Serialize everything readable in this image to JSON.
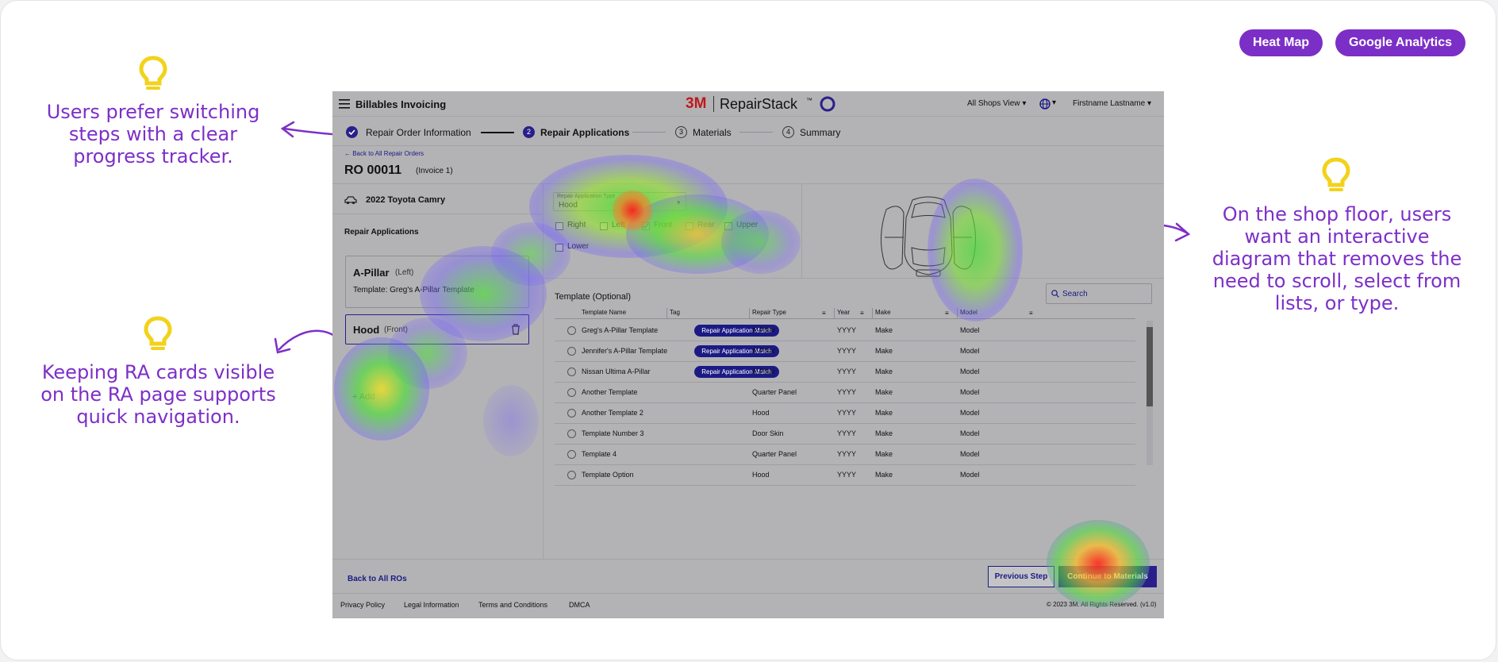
{
  "header_buttons": {
    "heatmap": "Heat Map",
    "analytics": "Google Analytics"
  },
  "callouts": {
    "progress": "Users prefer switching steps with a clear progress tracker.",
    "ra_cards": "Keeping RA cards visible on the RA page supports quick navigation.",
    "diagram": "On the shop floor, users want an interactive diagram that removes the need to scroll, select from lists, or type."
  },
  "app": {
    "title": "Billables Invoicing",
    "brand_3m": "3M",
    "brand_name": "RepairStack",
    "brand_tm": "™",
    "shops_view": "All Shops View",
    "user": "Firstname Lastname",
    "steps": [
      {
        "num": "",
        "label": "Repair Order Information"
      },
      {
        "num": "2",
        "label": "Repair Applications"
      },
      {
        "num": "3",
        "label": "Materials"
      },
      {
        "num": "4",
        "label": "Summary"
      }
    ],
    "back_link": "← Back to All Repair Orders",
    "ro_number": "RO 00011",
    "invoice": "(Invoice 1)",
    "vehicle": "2022 Toyota Camry",
    "ra_heading": "Repair Applications",
    "ra_cards": [
      {
        "name": "A-Pillar",
        "side": "(Left)",
        "template": "Template: Greg's A-Pillar Template"
      },
      {
        "name": "Hood",
        "side": "(Front)"
      }
    ],
    "add_label": "Add",
    "ra_type_label": "Repair Application Type",
    "ra_type_value": "Hood",
    "checkboxes": [
      "Right",
      "Left",
      "Front",
      "Rear",
      "Upper",
      "Lower"
    ],
    "template_heading": "Template (Optional)",
    "search_placeholder": "Search",
    "columns": [
      "Template Name",
      "Tag",
      "Repair Type",
      "Year",
      "Make",
      "Model"
    ],
    "rows": [
      {
        "name": "Greg's A-Pillar Template",
        "tag": "Repair Application Match",
        "type": "A-Pillar",
        "year": "YYYY",
        "make": "Make",
        "model": "Model"
      },
      {
        "name": "Jennifer's A-Pillar Template",
        "tag": "Repair Application Match",
        "type": "A-Pillar",
        "year": "YYYY",
        "make": "Make",
        "model": "Model"
      },
      {
        "name": "Nissan Ultima A-Pillar",
        "tag": "Repair Application Match",
        "type": "A-Pillar",
        "year": "YYYY",
        "make": "Make",
        "model": "Model"
      },
      {
        "name": "Another Template",
        "tag": "",
        "type": "Quarter Panel",
        "year": "YYYY",
        "make": "Make",
        "model": "Model"
      },
      {
        "name": "Another Template 2",
        "tag": "",
        "type": "Hood",
        "year": "YYYY",
        "make": "Make",
        "model": "Model"
      },
      {
        "name": "Template Number 3",
        "tag": "",
        "type": "Door Skin",
        "year": "YYYY",
        "make": "Make",
        "model": "Model"
      },
      {
        "name": "Template 4",
        "tag": "",
        "type": "Quarter Panel",
        "year": "YYYY",
        "make": "Make",
        "model": "Model"
      },
      {
        "name": "Template Option",
        "tag": "",
        "type": "Hood",
        "year": "YYYY",
        "make": "Make",
        "model": "Model"
      }
    ],
    "back_all": "Back to All ROs",
    "prev_step": "Previous Step",
    "continue": "Continue to Materials",
    "footer_links": [
      "Privacy Policy",
      "Legal Information",
      "Terms and Conditions",
      "DMCA"
    ],
    "copyright": "© 2023 3M. All Rights Reserved. (v1.0)"
  },
  "colors": {
    "accent": "#7b2fc6",
    "bulb": "#f2d21b",
    "app_primary": "#1b1a84"
  }
}
